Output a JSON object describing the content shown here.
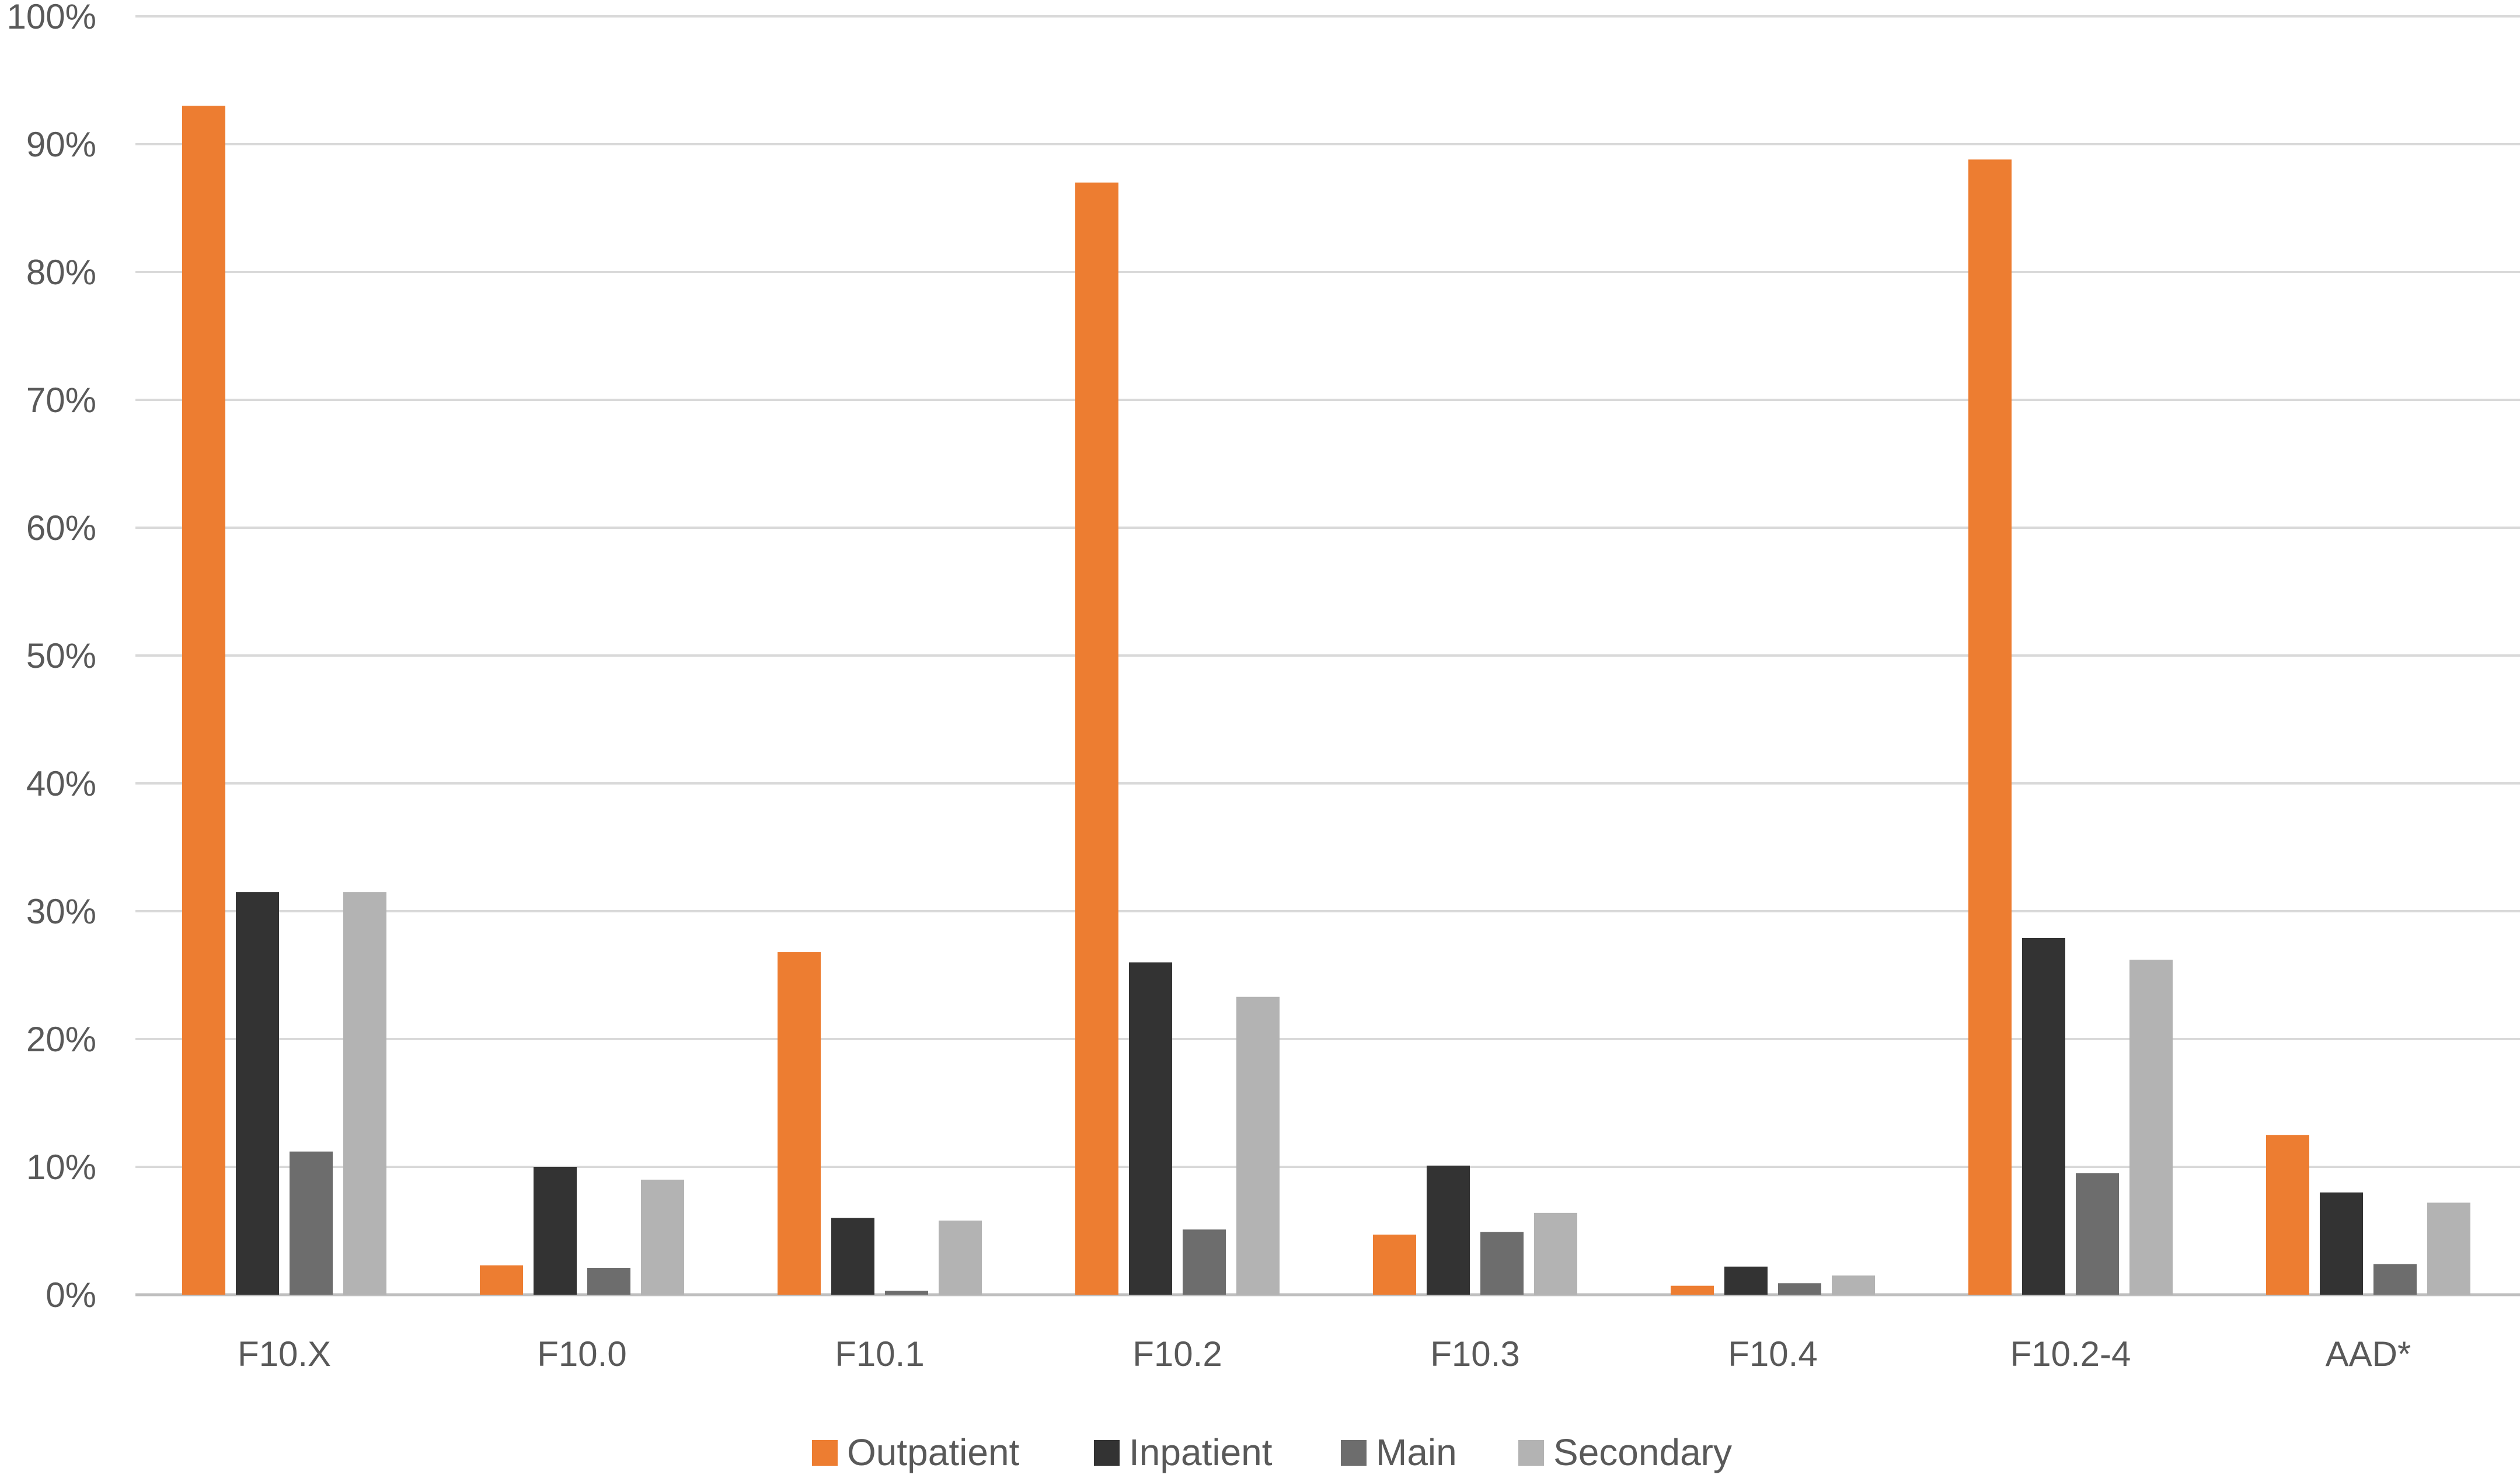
{
  "chart_data": {
    "type": "bar",
    "categories": [
      "F10.X",
      "F10.0",
      "F10.1",
      "F10.2",
      "F10.3",
      "F10.4",
      "F10.2-4",
      "AAD*"
    ],
    "series": [
      {
        "name": "Outpatient",
        "color": "#ED7D31",
        "values": [
          93.0,
          2.3,
          26.8,
          87.0,
          4.7,
          0.7,
          88.8,
          12.5
        ]
      },
      {
        "name": "Inpatient",
        "color": "#333333",
        "values": [
          31.5,
          10.0,
          6.0,
          26.0,
          10.1,
          2.2,
          27.9,
          8.0
        ]
      },
      {
        "name": "Main",
        "color": "#6D6D6D",
        "values": [
          11.2,
          2.1,
          0.3,
          5.1,
          4.9,
          0.9,
          9.5,
          2.4
        ]
      },
      {
        "name": "Secondary",
        "color": "#B3B3B3",
        "values": [
          31.5,
          9.0,
          5.8,
          23.3,
          6.4,
          1.5,
          26.2,
          7.2
        ]
      }
    ],
    "ylim": [
      0,
      100
    ],
    "y_ticks": [
      "0%",
      "10%",
      "20%",
      "30%",
      "40%",
      "50%",
      "60%",
      "70%",
      "80%",
      "90%",
      "100%"
    ],
    "grid": true,
    "legend_position": "bottom",
    "title": "",
    "xlabel": "",
    "ylabel": ""
  }
}
